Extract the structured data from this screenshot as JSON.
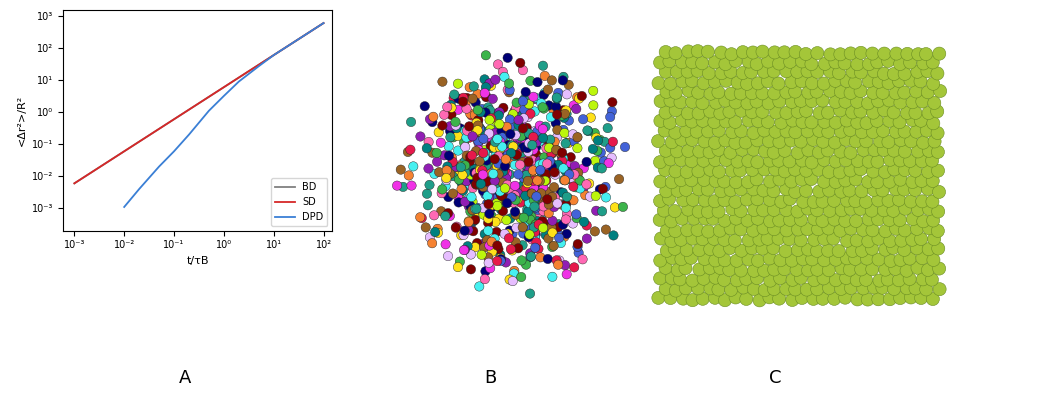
{
  "chart_data": {
    "type": "line",
    "x_label": "t/τB",
    "y_label": "<Δr²>/R²",
    "log": true,
    "xlim": [
      0.0006,
      150
    ],
    "ylim": [
      0.0002,
      1500
    ],
    "xticks": [
      {
        "value": 0.001,
        "label": "10⁻³"
      },
      {
        "value": 0.01,
        "label": "10⁻²"
      },
      {
        "value": 0.1,
        "label": "10⁻¹"
      },
      {
        "value": 1,
        "label": "10⁰"
      },
      {
        "value": 10,
        "label": "10¹"
      },
      {
        "value": 100,
        "label": "10²"
      }
    ],
    "yticks": [
      {
        "value": 0.001,
        "label": "10⁻³"
      },
      {
        "value": 0.01,
        "label": "10⁻²"
      },
      {
        "value": 0.1,
        "label": "10⁻¹"
      },
      {
        "value": 1,
        "label": "10⁰"
      },
      {
        "value": 10,
        "label": "10¹"
      },
      {
        "value": 100,
        "label": "10²"
      },
      {
        "value": 1000,
        "label": "10³"
      }
    ],
    "legend": "lower right",
    "series": [
      {
        "name": "BD",
        "color": "#808080",
        "x": [
          0.001,
          100
        ],
        "values": [
          0.006,
          600
        ]
      },
      {
        "name": "SD",
        "color": "#d62728",
        "x": [
          0.001,
          100
        ],
        "values": [
          0.006,
          600
        ]
      },
      {
        "name": "DPD",
        "color": "#3a7fd5",
        "x": [
          0.01,
          0.02,
          0.05,
          0.1,
          0.2,
          0.5,
          1,
          2,
          5,
          10,
          100
        ],
        "values": [
          0.0011,
          0.004,
          0.02,
          0.06,
          0.2,
          1.1,
          3.2,
          9,
          27,
          60,
          600
        ]
      }
    ]
  },
  "panel_labels": [
    "A",
    "B",
    "C"
  ]
}
